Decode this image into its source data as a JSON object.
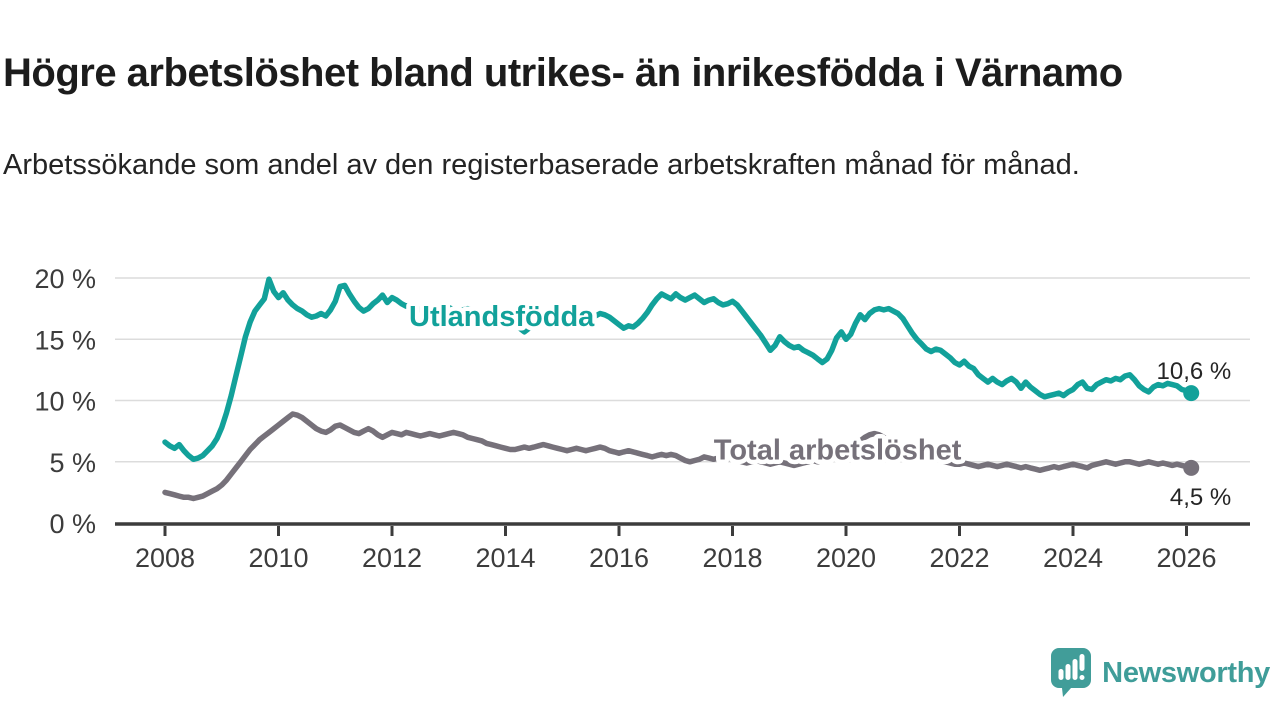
{
  "header": {
    "title": "Högre arbetslöshet bland utrikes- än inrikesfödda i Värnamo",
    "subtitle": "Arbetssökande som andel av den registerbaserade arbetskraften månad för månad."
  },
  "chart_data": {
    "type": "line",
    "title": "",
    "xlabel": "",
    "ylabel": "",
    "unit": "%",
    "grid": "horizontal",
    "legend_position": "inline-labels",
    "x_start_year": 2008,
    "x_step_months": 1,
    "x_ticks": [
      2008,
      2010,
      2012,
      2014,
      2016,
      2018,
      2020,
      2022,
      2024,
      2026
    ],
    "x_tick_labels": [
      "2008",
      "2010",
      "2012",
      "2014",
      "2016",
      "2018",
      "2020",
      "2022",
      "2024",
      "2026"
    ],
    "y_tick_values": [
      0,
      5,
      10,
      15,
      20
    ],
    "y_tick_labels": [
      "0 %",
      "5 %",
      "10 %",
      "15 %",
      "20 %"
    ],
    "ylim": [
      0,
      21.5
    ],
    "xlim": [
      2007.1,
      2027.1
    ],
    "axis_color": "#3c3c3c",
    "grid_color": "#dcdcdc",
    "series": [
      {
        "name": "Total arbetslöshet",
        "color": "#76717a",
        "label_year": 2017.67,
        "label_value": 6.0,
        "end_value_label": "4,5 %",
        "values": [
          2.5,
          2.4,
          2.3,
          2.2,
          2.1,
          2.1,
          2.0,
          2.1,
          2.2,
          2.4,
          2.6,
          2.8,
          3.1,
          3.5,
          4.0,
          4.5,
          5.0,
          5.5,
          6.0,
          6.4,
          6.8,
          7.1,
          7.4,
          7.7,
          8.0,
          8.3,
          8.6,
          8.9,
          8.8,
          8.6,
          8.3,
          8.0,
          7.7,
          7.5,
          7.4,
          7.6,
          7.9,
          8.0,
          7.8,
          7.6,
          7.4,
          7.3,
          7.5,
          7.7,
          7.5,
          7.2,
          7.0,
          7.2,
          7.4,
          7.3,
          7.2,
          7.4,
          7.3,
          7.2,
          7.1,
          7.2,
          7.3,
          7.2,
          7.1,
          7.2,
          7.3,
          7.4,
          7.3,
          7.2,
          7.0,
          6.9,
          6.8,
          6.7,
          6.5,
          6.4,
          6.3,
          6.2,
          6.1,
          6.0,
          6.0,
          6.1,
          6.2,
          6.1,
          6.2,
          6.3,
          6.4,
          6.3,
          6.2,
          6.1,
          6.0,
          5.9,
          6.0,
          6.1,
          6.0,
          5.9,
          6.0,
          6.1,
          6.2,
          6.1,
          5.9,
          5.8,
          5.7,
          5.8,
          5.9,
          5.8,
          5.7,
          5.6,
          5.5,
          5.4,
          5.5,
          5.6,
          5.5,
          5.6,
          5.5,
          5.3,
          5.1,
          5.0,
          5.1,
          5.2,
          5.4,
          5.3,
          5.2,
          5.3,
          5.4,
          5.3,
          5.2,
          5.1,
          5.0,
          4.9,
          5.0,
          5.1,
          5.0,
          4.9,
          4.8,
          4.9,
          5.0,
          4.9,
          4.8,
          4.7,
          4.8,
          4.9,
          5.0,
          5.1,
          5.0,
          5.1,
          5.2,
          5.3,
          5.4,
          5.5,
          5.6,
          5.8,
          6.2,
          6.7,
          7.0,
          7.2,
          7.3,
          7.2,
          7.0,
          6.8,
          6.6,
          6.4,
          6.3,
          6.2,
          6.0,
          5.8,
          5.6,
          5.4,
          5.3,
          5.2,
          5.1,
          5.0,
          4.9,
          4.8,
          4.8,
          4.9,
          4.8,
          4.7,
          4.6,
          4.7,
          4.8,
          4.7,
          4.6,
          4.7,
          4.8,
          4.7,
          4.6,
          4.5,
          4.6,
          4.5,
          4.4,
          4.3,
          4.4,
          4.5,
          4.6,
          4.5,
          4.6,
          4.7,
          4.8,
          4.7,
          4.6,
          4.5,
          4.7,
          4.8,
          4.9,
          5.0,
          4.9,
          4.8,
          4.9,
          5.0,
          5.0,
          4.9,
          4.8,
          4.9,
          5.0,
          4.9,
          4.8,
          4.9,
          4.8,
          4.7,
          4.8,
          4.7,
          4.6,
          4.5
        ]
      },
      {
        "name": "Utlandsfödda",
        "color": "#12a19a",
        "label_year": 2012.3,
        "label_value": 16.9,
        "end_value_label": "10,6 %",
        "values": [
          6.6,
          6.3,
          6.1,
          6.4,
          5.9,
          5.5,
          5.2,
          5.3,
          5.5,
          5.9,
          6.3,
          6.9,
          7.8,
          9.0,
          10.4,
          12.0,
          13.6,
          15.2,
          16.4,
          17.3,
          17.8,
          18.3,
          19.9,
          18.9,
          18.4,
          18.8,
          18.2,
          17.8,
          17.5,
          17.3,
          17.0,
          16.8,
          16.9,
          17.1,
          16.9,
          17.4,
          18.1,
          19.3,
          19.4,
          18.7,
          18.1,
          17.6,
          17.3,
          17.5,
          17.9,
          18.2,
          18.6,
          18.0,
          18.4,
          18.2,
          17.9,
          17.7,
          17.8,
          17.6,
          17.4,
          17.5,
          17.7,
          17.6,
          17.4,
          17.5,
          17.6,
          17.4,
          17.3,
          17.4,
          17.5,
          17.3,
          17.1,
          17.0,
          17.2,
          17.1,
          16.9,
          17.0,
          16.9,
          16.7,
          16.3,
          15.9,
          15.6,
          15.9,
          16.2,
          16.4,
          16.5,
          16.4,
          16.2,
          16.4,
          16.6,
          16.5,
          16.3,
          16.4,
          16.6,
          16.5,
          16.7,
          16.9,
          17.1,
          17.0,
          16.8,
          16.5,
          16.2,
          15.9,
          16.1,
          16.0,
          16.3,
          16.7,
          17.2,
          17.8,
          18.3,
          18.7,
          18.5,
          18.3,
          18.7,
          18.4,
          18.2,
          18.4,
          18.6,
          18.3,
          18.0,
          18.2,
          18.3,
          18.0,
          17.8,
          17.9,
          18.1,
          17.8,
          17.3,
          16.8,
          16.3,
          15.8,
          15.3,
          14.7,
          14.1,
          14.5,
          15.2,
          14.8,
          14.5,
          14.3,
          14.4,
          14.1,
          13.9,
          13.7,
          13.4,
          13.1,
          13.4,
          14.1,
          15.1,
          15.6,
          15.0,
          15.4,
          16.3,
          17.0,
          16.6,
          17.1,
          17.4,
          17.5,
          17.4,
          17.5,
          17.3,
          17.1,
          16.7,
          16.1,
          15.5,
          15.0,
          14.6,
          14.2,
          14.0,
          14.2,
          14.1,
          13.8,
          13.5,
          13.1,
          12.9,
          13.2,
          12.8,
          12.6,
          12.1,
          11.8,
          11.5,
          11.8,
          11.5,
          11.3,
          11.6,
          11.8,
          11.5,
          11.0,
          11.5,
          11.1,
          10.8,
          10.5,
          10.3,
          10.4,
          10.5,
          10.6,
          10.4,
          10.7,
          10.9,
          11.3,
          11.5,
          11.0,
          10.9,
          11.3,
          11.5,
          11.7,
          11.6,
          11.8,
          11.7,
          12.0,
          12.1,
          11.7,
          11.2,
          10.9,
          10.7,
          11.1,
          11.3,
          11.2,
          11.4,
          11.3,
          11.2,
          10.9,
          10.8,
          10.6
        ]
      }
    ],
    "annotations": [
      {
        "text": "10,6 %",
        "series": "Utlandsfödda",
        "position": "last-point"
      },
      {
        "text": "4,5 %",
        "series": "Total arbetslöshet",
        "position": "last-point"
      }
    ]
  },
  "branding": {
    "name": "Newsworthy",
    "color": "#3f9d99",
    "icon": "newsworthy-bubble-chart-icon"
  }
}
